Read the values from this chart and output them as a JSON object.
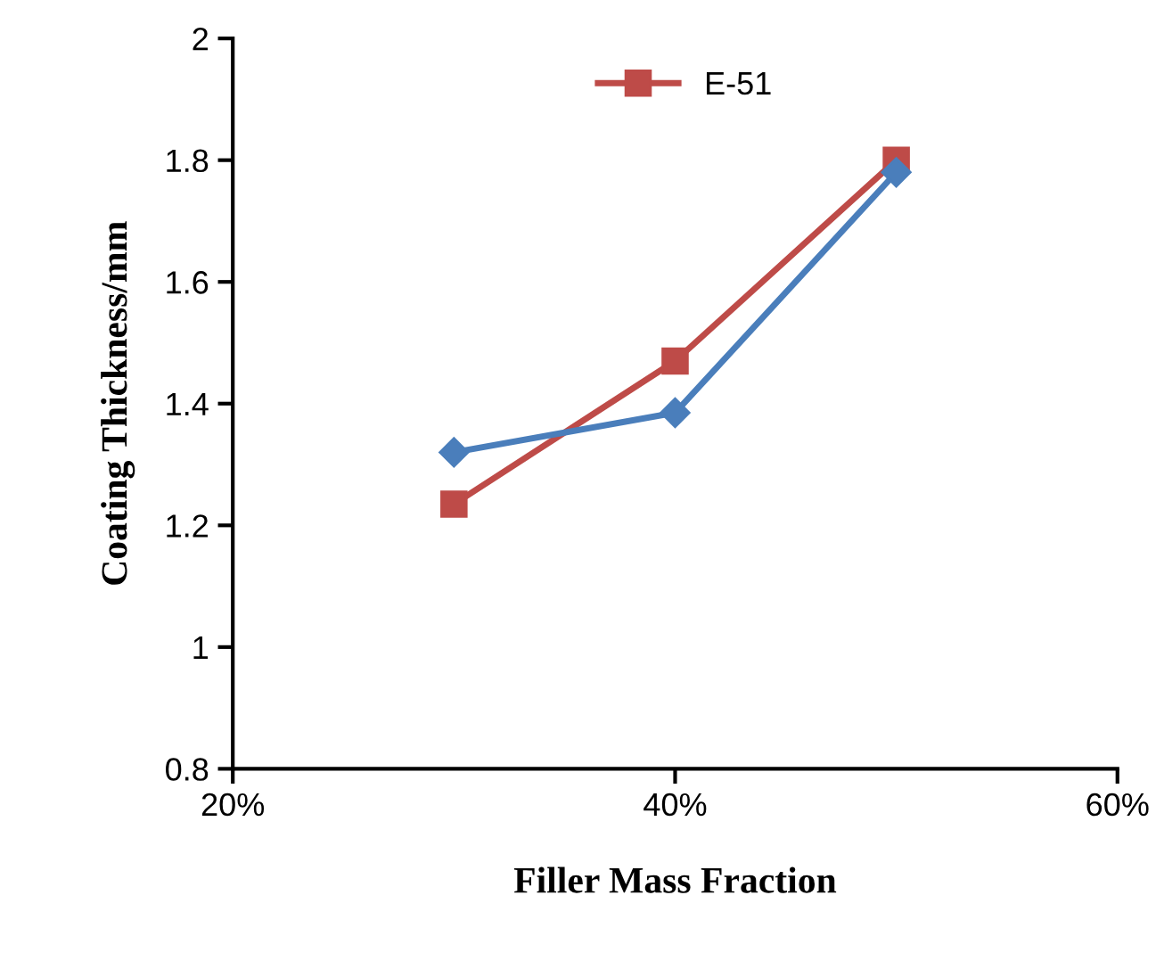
{
  "chart_data": {
    "type": "line",
    "xlabel": "Filler Mass Fraction",
    "ylabel": "Coating Thickness/mm",
    "x": [
      30,
      40,
      50
    ],
    "series": [
      {
        "color": "#4a7ebb",
        "marker": "diamond",
        "values": [
          1.32,
          1.385,
          1.78
        ]
      },
      {
        "name": "E-51",
        "color": "#be4b48",
        "marker": "square",
        "values": [
          1.235,
          1.47,
          1.8
        ]
      }
    ],
    "xlim": [
      20,
      60
    ],
    "xticks": [
      {
        "value": 20,
        "label": "20%"
      },
      {
        "value": 40,
        "label": "40%"
      },
      {
        "value": 60,
        "label": "60%"
      }
    ],
    "ylim": [
      0.8,
      2
    ],
    "yticks": [
      0.8,
      1,
      1.2,
      1.4,
      1.6,
      1.8,
      2
    ],
    "grid": false,
    "legend": "top"
  }
}
